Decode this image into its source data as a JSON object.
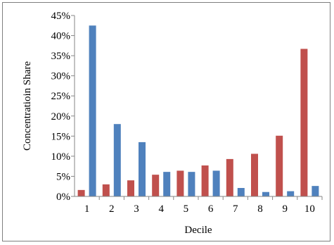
{
  "chart_data": {
    "type": "bar",
    "title": "",
    "xlabel": "Decile",
    "ylabel": "Concentratioin  Share",
    "categories": [
      "1",
      "2",
      "3",
      "4",
      "5",
      "6",
      "7",
      "8",
      "9",
      "10"
    ],
    "ylim": [
      0,
      0.45
    ],
    "yticks": [
      0,
      0.05,
      0.1,
      0.15,
      0.2,
      0.25,
      0.3,
      0.35,
      0.4,
      0.45
    ],
    "ytick_labels": [
      "0%",
      "5%",
      "10%",
      "15%",
      "20%",
      "25%",
      "30%",
      "35%",
      "40%",
      "45%"
    ],
    "grid": false,
    "legend": "none",
    "series": [
      {
        "color": "#c0504d",
        "values": [
          0.016,
          0.03,
          0.04,
          0.054,
          0.064,
          0.077,
          0.093,
          0.106,
          0.151,
          0.367
        ]
      },
      {
        "color": "#4f81bd",
        "values": [
          0.425,
          0.18,
          0.135,
          0.061,
          0.061,
          0.064,
          0.021,
          0.011,
          0.013,
          0.026
        ]
      }
    ]
  }
}
